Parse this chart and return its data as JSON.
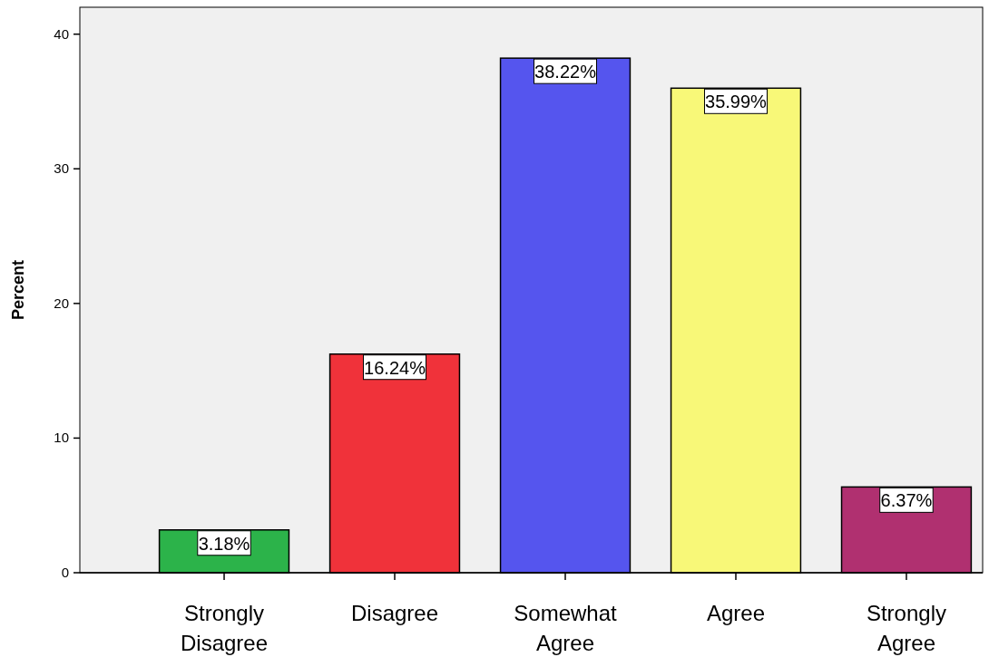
{
  "chart_data": {
    "type": "bar",
    "ylabel": "Percent",
    "categories": [
      "Strongly Disagree",
      "Disagree",
      "Somewhat Agree",
      "Agree",
      "Strongly Agree"
    ],
    "values": [
      3.18,
      16.24,
      38.22,
      35.99,
      6.37
    ],
    "colors": [
      "#2cb34a",
      "#f0323a",
      "#5555ee",
      "#f8f878",
      "#b03070"
    ],
    "value_labels": [
      "3.18%",
      "16.24%",
      "38.22%",
      "35.99%",
      "6.37%"
    ],
    "ylim": [
      0,
      42
    ],
    "yticks": [
      0,
      10,
      20,
      30,
      40
    ]
  }
}
